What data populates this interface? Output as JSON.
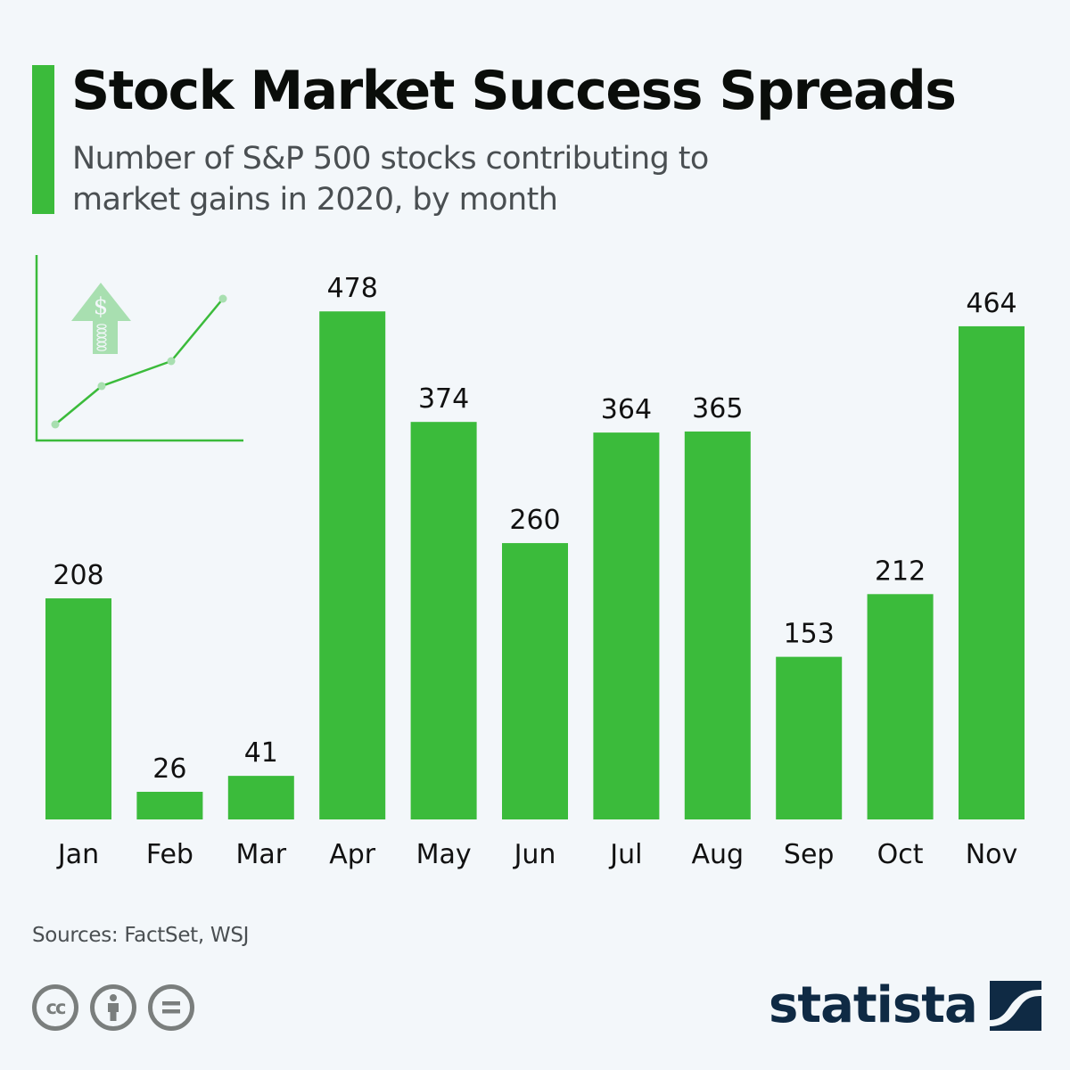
{
  "header": {
    "title": "Stock Market Success Spreads",
    "subtitle": "Number of S&P 500 stocks contributing to market gains in 2020, by month"
  },
  "colors": {
    "accent": "#3bbb3b",
    "bar": "#3bbb3b",
    "background": "#f3f7fa",
    "illustration": "#a8dfb0",
    "logo": "#0f2a44",
    "license_icons": "#7a7e7d"
  },
  "illustration": {
    "icons": [
      "trend-line-icon",
      "dollar-up-arrow-icon",
      "coin-stack-icon"
    ]
  },
  "chart_data": {
    "type": "bar",
    "title": "Stock Market Success Spreads",
    "subtitle": "Number of S&P 500 stocks contributing to market gains in 2020, by month",
    "xlabel": "",
    "ylabel": "",
    "categories": [
      "Jan",
      "Feb",
      "Mar",
      "Apr",
      "May",
      "Jun",
      "Jul",
      "Aug",
      "Sep",
      "Oct",
      "Nov"
    ],
    "values": [
      208,
      26,
      41,
      478,
      374,
      260,
      364,
      365,
      153,
      212,
      464
    ],
    "ylim": [
      0,
      500
    ],
    "grid": false,
    "data_labels": true,
    "legend": "none"
  },
  "footer": {
    "source": "Sources: FactSet, WSJ",
    "license_icons": [
      "cc-icon",
      "attribution-icon",
      "no-derivatives-icon"
    ],
    "logo_text": "statista"
  }
}
